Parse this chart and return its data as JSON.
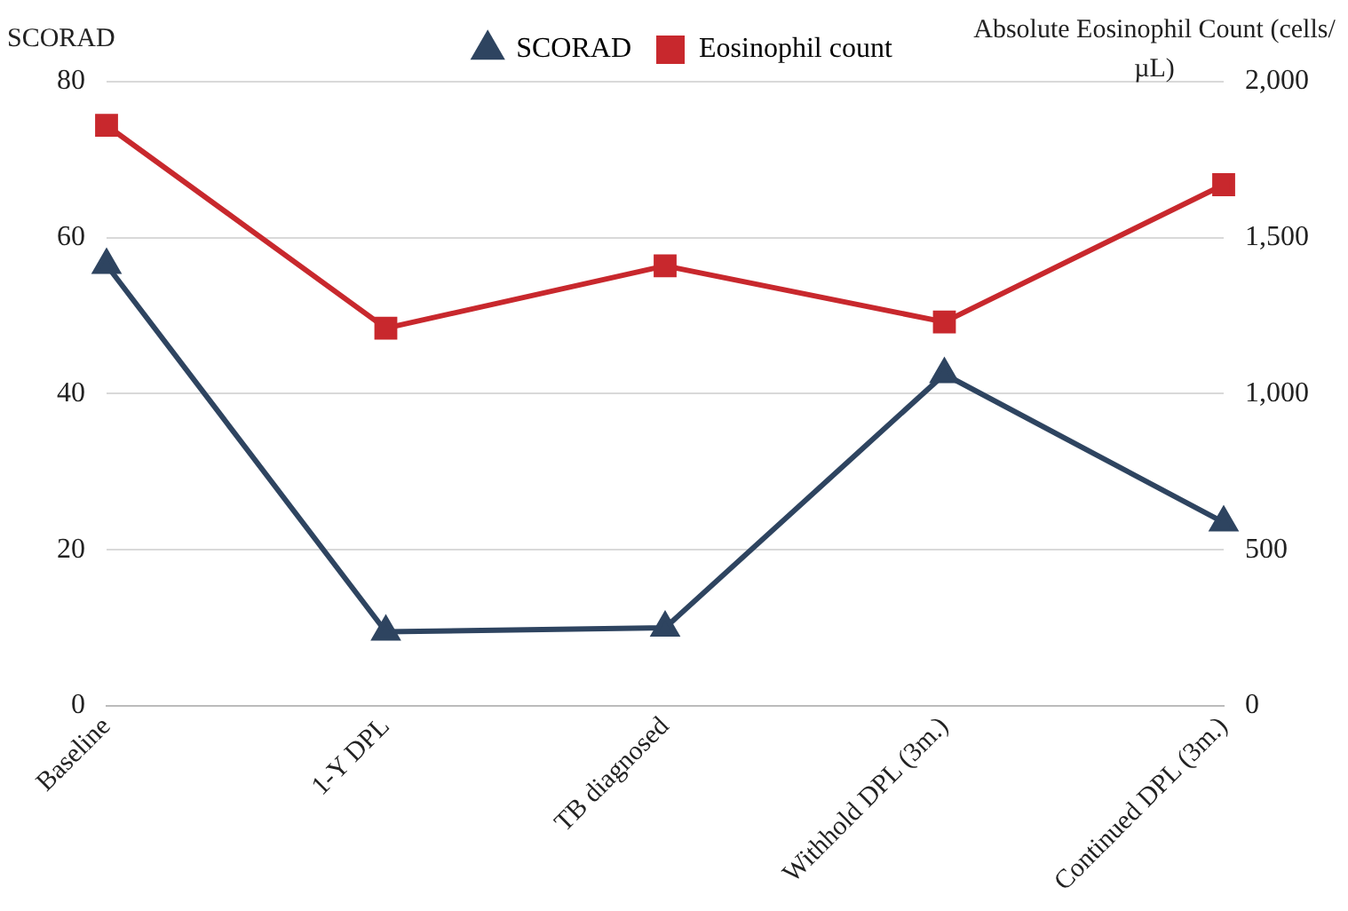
{
  "chart_data": {
    "type": "line",
    "ylabel": "SCORAD",
    "y2label": "Absolute Eosinophil Count (cells/µL)",
    "categories": [
      "Baseline",
      "1-Y DPL",
      "TB diagnosed",
      "Withhold DPL (3m.)",
      "Continued DPL (3m.)"
    ],
    "series": [
      {
        "name": "SCORAD",
        "color": "#2e4460",
        "values": [
          56.5,
          9.5,
          10,
          42.5,
          23.5
        ],
        "marker": "triangle"
      },
      {
        "name": "Eosinophil count",
        "color": "#c8282d",
        "values": [
          1860,
          1210,
          1410,
          1230,
          1670
        ],
        "marker": "square",
        "axis": "y2"
      }
    ],
    "ylim": [
      0,
      80
    ],
    "yticks": [
      0,
      20,
      40,
      60,
      80
    ],
    "y2lim": [
      0,
      2000
    ],
    "y2ticks": [
      0,
      {
        "value": 500,
        "label": "500"
      },
      {
        "value": 1000,
        "label": "1,000"
      },
      {
        "value": 1500,
        "label": "1,500"
      },
      {
        "value": 2000,
        "label": "2,000"
      }
    ],
    "grid": "y",
    "legend": "top",
    "line_style": "solid"
  }
}
